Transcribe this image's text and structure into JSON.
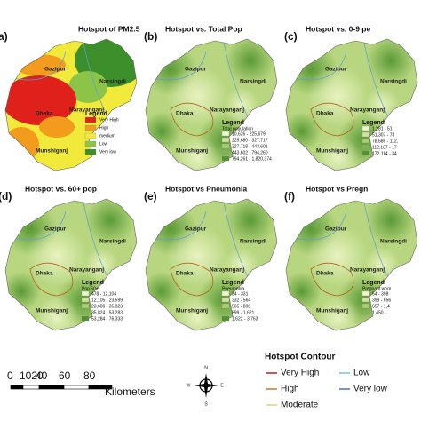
{
  "places": [
    "Gazipur",
    "Narsingdi",
    "Dhaka",
    "Narayanganj",
    "Munshiganj"
  ],
  "panels": [
    {
      "label": "a)",
      "title": "Hotspot of PM2.5",
      "legend": {
        "heading": "Legend",
        "classes": [
          "Very High",
          "High",
          "medium",
          "Low",
          "Very low"
        ]
      }
    },
    {
      "label": "(b)",
      "title": "Hotspot vs. Total Pop",
      "legend": {
        "heading": "Legend",
        "field": "Total population",
        "classes": [
          "10,626 - 225,679",
          "225,680 - 327,717",
          "327,718 - 443,601",
          "443,602 - 794,260",
          "794,261 - 1,820,374"
        ]
      }
    },
    {
      "label": "(c)",
      "title": "Hotspot vs. 0-9 pe",
      "legend": {
        "heading": "Legend",
        "classes": [
          "1,281 - 51,",
          "51,307 - 78",
          "78,686 - 112,",
          "112,137 - 17",
          "172,114 - 34"
        ]
      }
    },
    {
      "label": "(d)",
      "title": "Hotspot vs. 60+ pop",
      "legend": {
        "heading": "Legend",
        "field": "Pop 60+",
        "classes": [
          "478 - 12,104",
          "12,105 - 23,599",
          "23,600 - 35,823",
          "35,824 - 53,283",
          "53,284 - 76,333"
        ]
      }
    },
    {
      "label": "(e)",
      "title": "Hotspot vs Pneumonia",
      "legend": {
        "heading": "Legend",
        "field": "Pneumonia",
        "classes": [
          "34 - 331",
          "332 - 564",
          "565 - 898",
          "899 - 1,621",
          "1,622 - 3,763"
        ]
      }
    },
    {
      "label": "(f)",
      "title": "Hotspot vs Pregn",
      "legend": {
        "heading": "Legend",
        "field": "Pregnant wom",
        "classes": [
          "54 - 398",
          "399 - 656",
          "657 - 1,4",
          "1,450 -"
        ]
      }
    }
  ],
  "scale_bar": {
    "ticks": [
      "0",
      "1020",
      "40",
      "60",
      "80"
    ],
    "unit": "Kilometers"
  },
  "compass": [
    "N",
    "S",
    "E",
    "W"
  ],
  "contour_legend": {
    "title": "Hotspot Contour",
    "items": [
      "Very High",
      "High",
      "Moderate",
      "Low",
      "Very low"
    ]
  }
}
